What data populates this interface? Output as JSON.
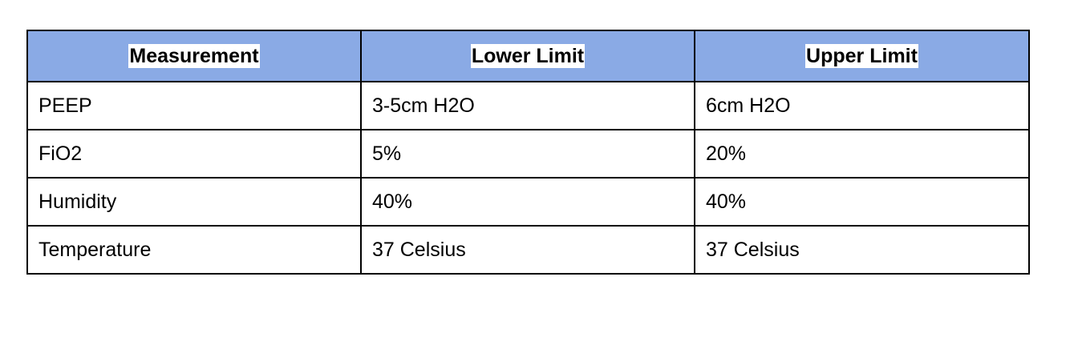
{
  "table": {
    "headers": [
      "Measurement",
      "Lower Limit",
      "Upper Limit"
    ],
    "rows": [
      [
        "PEEP",
        "3-5cm H2O",
        "6cm H2O"
      ],
      [
        "FiO2",
        "5%",
        "20%"
      ],
      [
        "Humidity",
        "40%",
        "40%"
      ],
      [
        "Temperature",
        "37 Celsius",
        "37 Celsius"
      ]
    ]
  },
  "colors": {
    "header_background": "#8aaae5",
    "border": "#000000"
  }
}
